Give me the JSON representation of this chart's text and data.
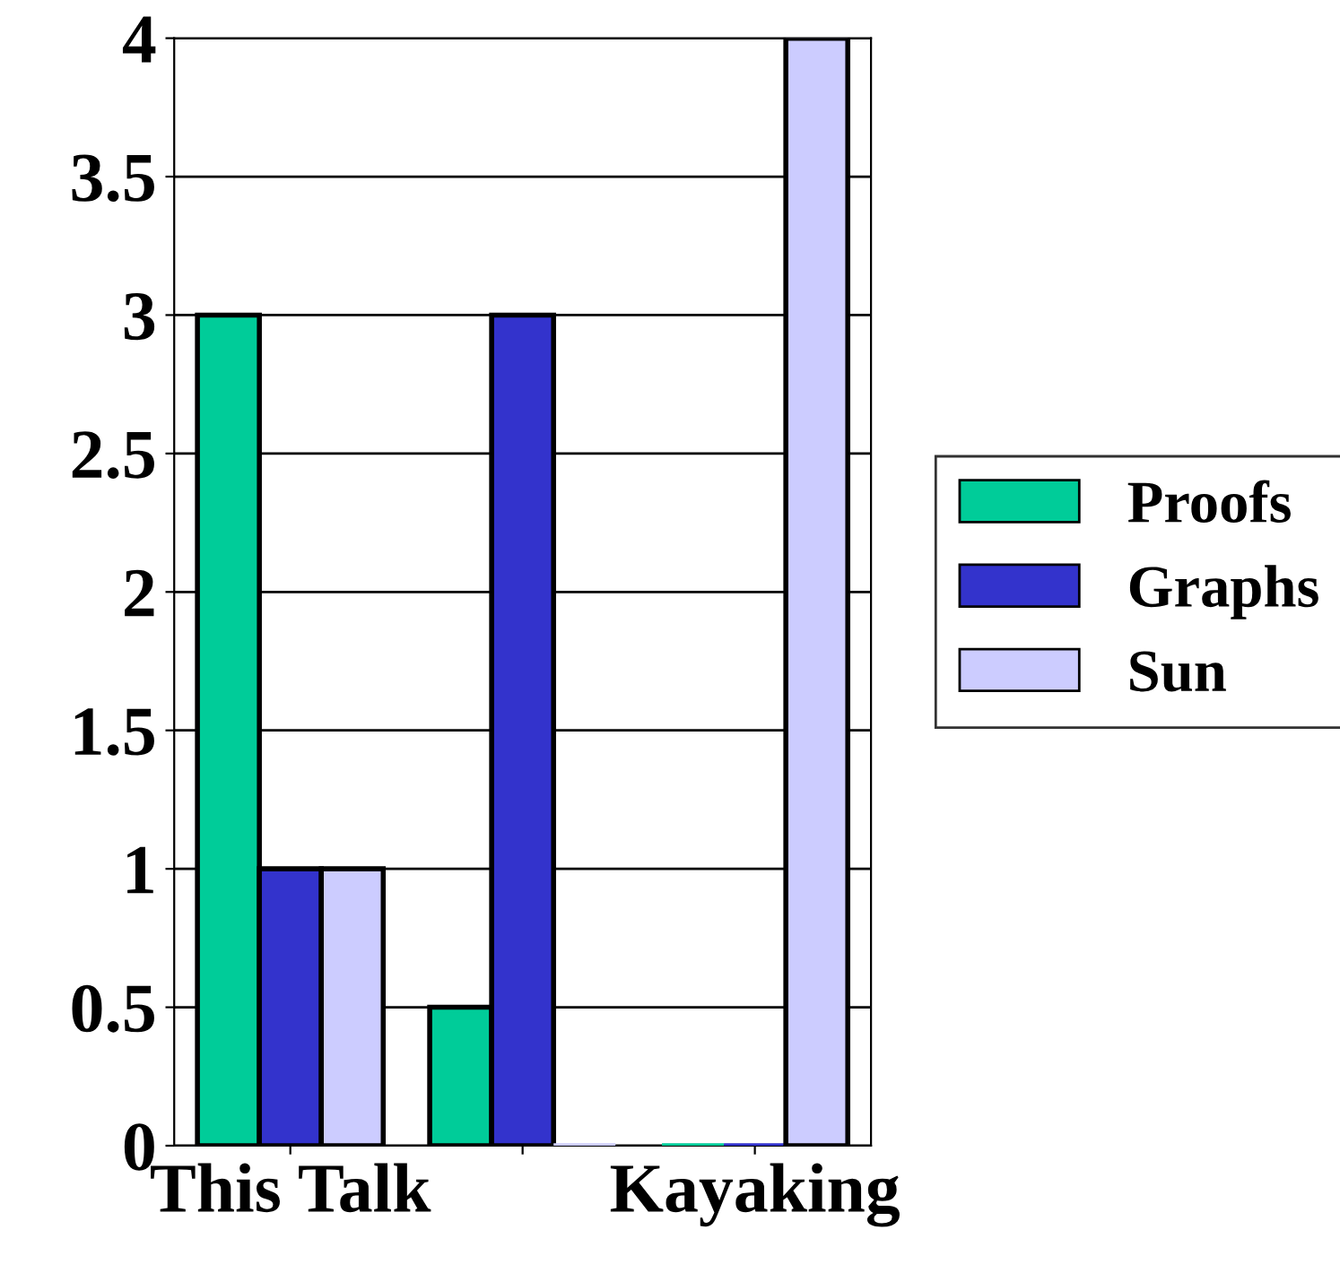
{
  "chart_data": {
    "type": "bar",
    "categories": [
      "This Talk",
      null,
      "Kayaking"
    ],
    "series": [
      {
        "name": "Proofs",
        "color": "#00cc99",
        "values": [
          3,
          0.5,
          0
        ]
      },
      {
        "name": "Graphs",
        "color": "#3333cc",
        "values": [
          1,
          3,
          0
        ]
      },
      {
        "name": "Sun",
        "color": "#ccccff",
        "values": [
          1,
          0,
          4
        ]
      }
    ],
    "ylim": [
      0,
      4
    ],
    "yticks": [
      0,
      0.5,
      1,
      1.5,
      2,
      2.5,
      3,
      3.5,
      4
    ],
    "grid": "y",
    "legend": "right"
  }
}
